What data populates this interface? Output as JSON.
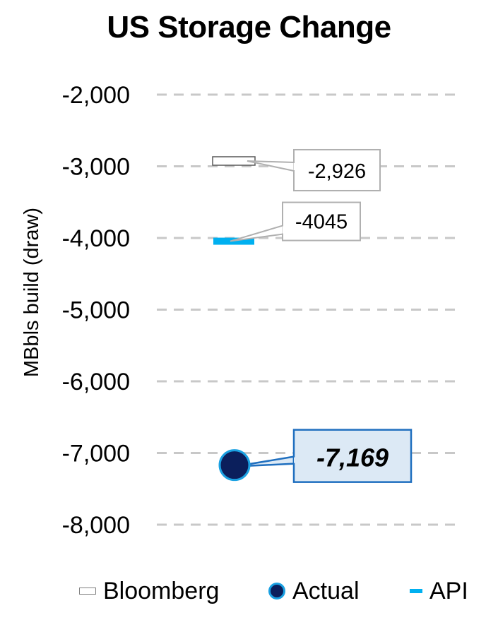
{
  "chart_data": {
    "type": "scatter",
    "title": "US Storage Change",
    "ylabel": "MBbls build (draw)",
    "ylim": [
      -8000,
      -2000
    ],
    "yticks": [
      -2000,
      -3000,
      -4000,
      -5000,
      -6000,
      -7000,
      -8000
    ],
    "ytick_labels": [
      "-2,000",
      "-3,000",
      "-4,000",
      "-5,000",
      "-6,000",
      "-7,000",
      "-8,000"
    ],
    "grid": true,
    "legend_position": "bottom",
    "series": [
      {
        "name": "Bloomberg",
        "value": -2926,
        "label": "-2,926",
        "marker": "dash-outline",
        "color": "#ffffff"
      },
      {
        "name": "API",
        "value": -4045,
        "label": "-4045",
        "marker": "dash",
        "color": "#00b0f0"
      },
      {
        "name": "Actual",
        "value": -7169,
        "label": "-7,169",
        "marker": "circle",
        "color": "#0b1f5c"
      }
    ]
  },
  "legend": {
    "bloomberg": "Bloomberg",
    "actual": "Actual",
    "api": "API"
  }
}
